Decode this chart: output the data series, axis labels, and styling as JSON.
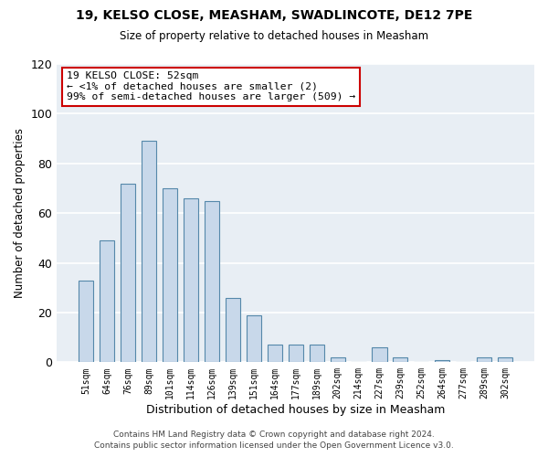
{
  "title": "19, KELSO CLOSE, MEASHAM, SWADLINCOTE, DE12 7PE",
  "subtitle": "Size of property relative to detached houses in Measham",
  "xlabel": "Distribution of detached houses by size in Measham",
  "ylabel": "Number of detached properties",
  "bar_labels": [
    "51sqm",
    "64sqm",
    "76sqm",
    "89sqm",
    "101sqm",
    "114sqm",
    "126sqm",
    "139sqm",
    "151sqm",
    "164sqm",
    "177sqm",
    "189sqm",
    "202sqm",
    "214sqm",
    "227sqm",
    "239sqm",
    "252sqm",
    "264sqm",
    "277sqm",
    "289sqm",
    "302sqm"
  ],
  "bar_values": [
    33,
    49,
    72,
    89,
    70,
    66,
    65,
    26,
    19,
    7,
    7,
    7,
    2,
    0,
    6,
    2,
    0,
    1,
    0,
    2,
    2
  ],
  "bar_color": "#c8d8ea",
  "bar_edge_color": "#5588aa",
  "ylim": [
    0,
    120
  ],
  "yticks": [
    0,
    20,
    40,
    60,
    80,
    100,
    120
  ],
  "annotation_title": "19 KELSO CLOSE: 52sqm",
  "annotation_line1": "← <1% of detached houses are smaller (2)",
  "annotation_line2": "99% of semi-detached houses are larger (509) →",
  "annotation_box_color": "#ffffff",
  "annotation_box_edge_color": "#cc0000",
  "footer_line1": "Contains HM Land Registry data © Crown copyright and database right 2024.",
  "footer_line2": "Contains public sector information licensed under the Open Government Licence v3.0.",
  "bg_color": "#ffffff",
  "plot_bg_color": "#e8eef4"
}
